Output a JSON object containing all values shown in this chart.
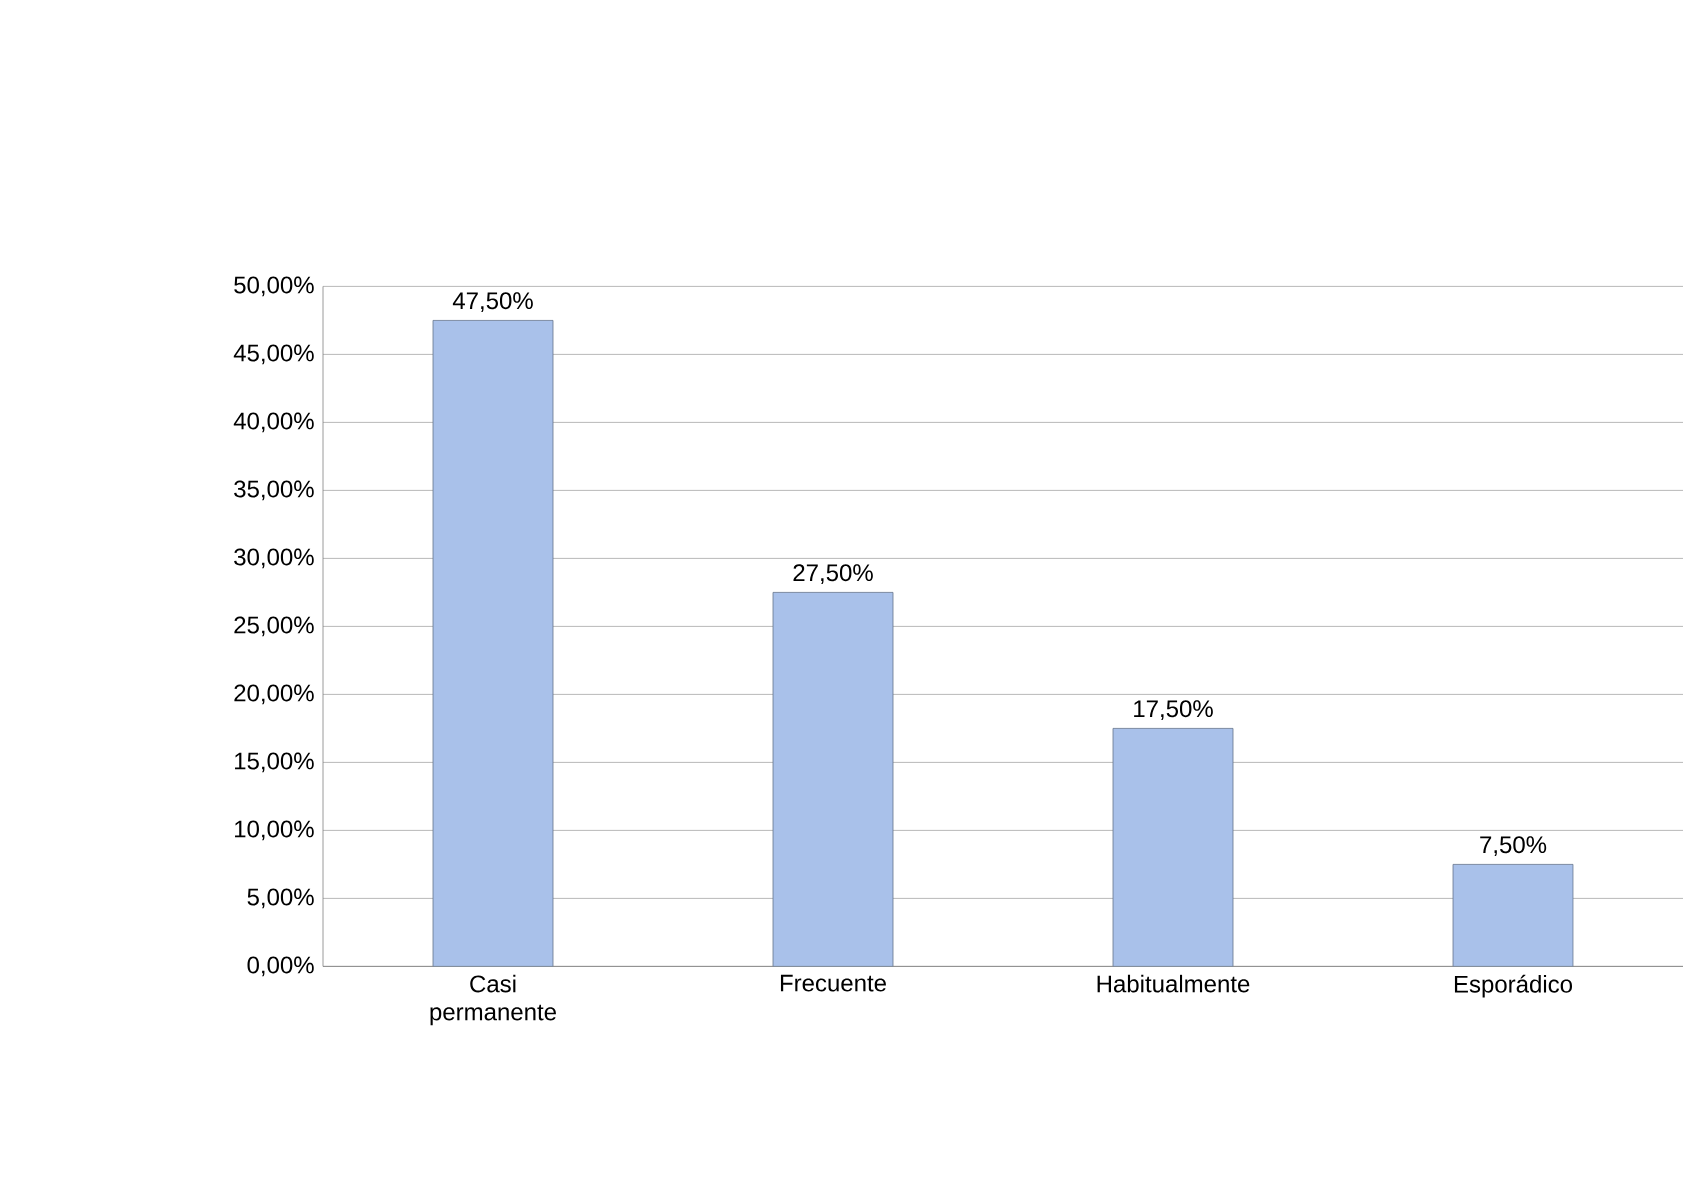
{
  "chart_data": {
    "type": "bar",
    "categories": [
      "Casi permanente",
      "Frecuente",
      "Habitualmente",
      "Esporádico"
    ],
    "values": [
      47.5,
      27.5,
      17.5,
      7.5
    ],
    "value_labels": [
      "47,50%",
      "27,50%",
      "17,50%",
      "7,50%"
    ],
    "color": "#a9c1ea",
    "ylim": [
      0,
      50
    ],
    "yticks": [
      {
        "value": 0,
        "label": "0,00%"
      },
      {
        "value": 5,
        "label": "5,00%"
      },
      {
        "value": 10,
        "label": "10,00%"
      },
      {
        "value": 15,
        "label": "15,00%"
      },
      {
        "value": 20,
        "label": "20,00%"
      },
      {
        "value": 25,
        "label": "25,00%"
      },
      {
        "value": 30,
        "label": "30,00%"
      },
      {
        "value": 35,
        "label": "35,00%"
      },
      {
        "value": 40,
        "label": "40,00%"
      },
      {
        "value": 45,
        "label": "45,00%"
      },
      {
        "value": 50,
        "label": "50,00%"
      }
    ],
    "grid": "y"
  }
}
